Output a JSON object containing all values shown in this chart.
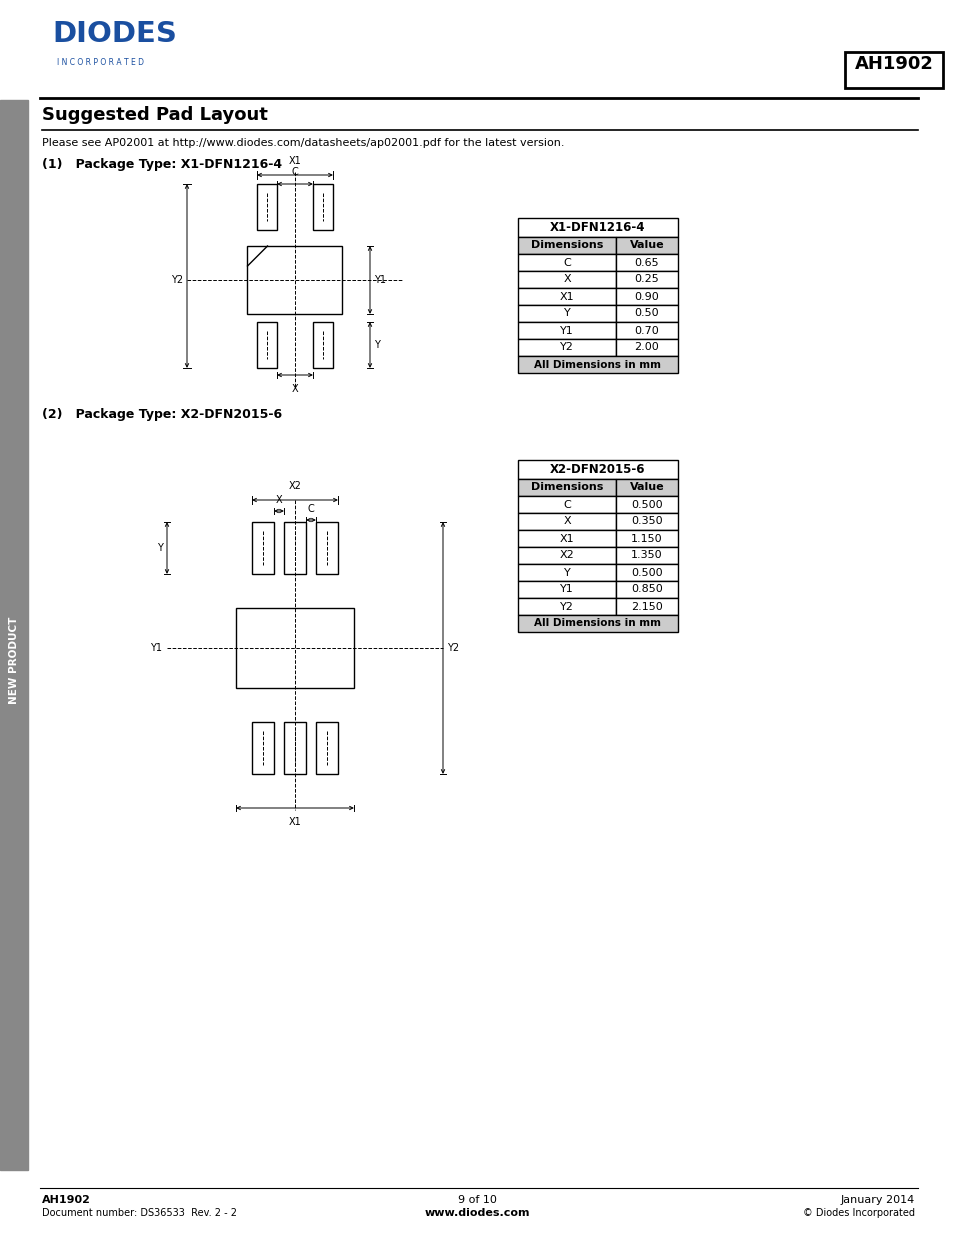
{
  "title": "Suggested Pad Layout",
  "subtitle": "Please see AP02001 at http://www.diodes.com/datasheets/ap02001.pdf for the latest version.",
  "part_number": "AH1902",
  "section1_title": "(1)   Package Type: X1-DFN1216-4",
  "section2_title": "(2)   Package Type: X2-DFN2015-6",
  "table1_title": "X1-DFN1216-4",
  "table1_headers": [
    "Dimensions",
    "Value"
  ],
  "table1_rows": [
    [
      "C",
      "0.65"
    ],
    [
      "X",
      "0.25"
    ],
    [
      "X1",
      "0.90"
    ],
    [
      "Y",
      "0.50"
    ],
    [
      "Y1",
      "0.70"
    ],
    [
      "Y2",
      "2.00"
    ]
  ],
  "table1_footer": "All Dimensions in mm",
  "table2_title": "X2-DFN2015-6",
  "table2_headers": [
    "Dimensions",
    "Value"
  ],
  "table2_rows": [
    [
      "C",
      "0.500"
    ],
    [
      "X",
      "0.350"
    ],
    [
      "X1",
      "1.150"
    ],
    [
      "X2",
      "1.350"
    ],
    [
      "Y",
      "0.500"
    ],
    [
      "Y1",
      "0.850"
    ],
    [
      "Y2",
      "2.150"
    ]
  ],
  "table2_footer": "All Dimensions in mm",
  "footer_left1": "AH1902",
  "footer_left2": "Document number: DS36533  Rev. 2 - 2",
  "footer_center1": "9 of 10",
  "footer_center2": "www.diodes.com",
  "footer_right1": "January 2014",
  "footer_right2": "© Diodes Incorporated",
  "sidebar_text": "NEW PRODUCT",
  "bg_color": "#ffffff",
  "sidebar_color": "#888888",
  "diodes_blue": "#1a4fa0",
  "line_color": "#000000",
  "table_header_bg": "#d0d0d0"
}
